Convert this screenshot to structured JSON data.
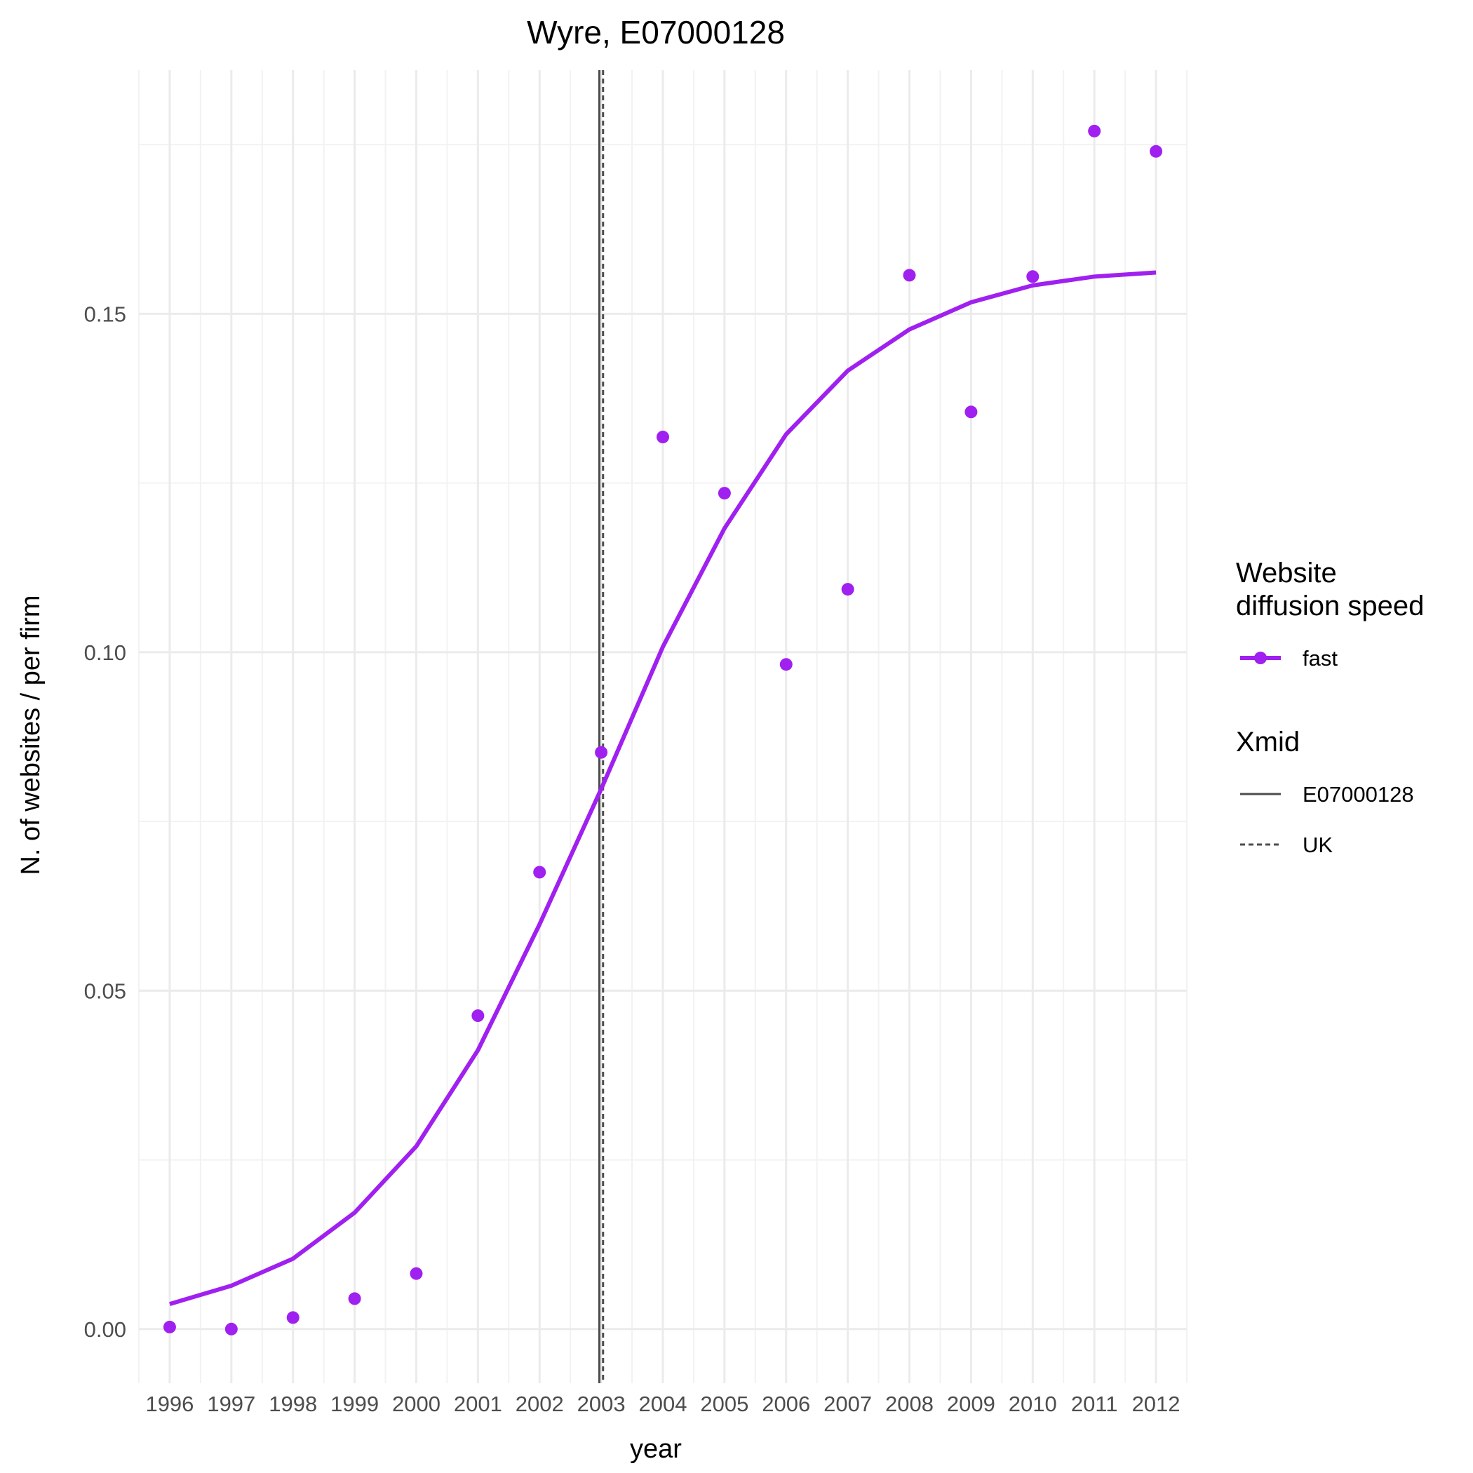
{
  "chart_data": {
    "type": "line",
    "title": "Wyre, E07000128",
    "xlabel": "year",
    "ylabel": "N. of websites / per firm",
    "x_ticks": [
      "1996",
      "1997",
      "1998",
      "1999",
      "2000",
      "2001",
      "2002",
      "2003",
      "2004",
      "2005",
      "2006",
      "2007",
      "2008",
      "2009",
      "2010",
      "2011",
      "2012"
    ],
    "y_ticks": [
      "0.00",
      "0.05",
      "0.10",
      "0.15"
    ],
    "xlim": [
      1995.5,
      2012.5
    ],
    "ylim": [
      -0.008,
      0.186
    ],
    "grid": true,
    "legend_placement": "right",
    "series": [
      {
        "name": "fast",
        "color": "#a020f0",
        "points": {
          "x": [
            1996,
            1997,
            1998,
            1999,
            2000,
            2001,
            2002,
            2003,
            2004,
            2005,
            2006,
            2007,
            2008,
            2009,
            2010,
            2011,
            2012
          ],
          "y": [
            0.0003,
            0.0,
            0.0017,
            0.0045,
            0.0082,
            0.0463,
            0.0675,
            0.0852,
            0.1318,
            0.1235,
            0.0982,
            0.1093,
            0.1557,
            0.1355,
            0.1555,
            0.177,
            0.174
          ]
        },
        "fit": {
          "x": [
            1996,
            1997,
            1998,
            1999,
            2000,
            2001,
            2002,
            2003,
            2004,
            2005,
            2006,
            2007,
            2008,
            2009,
            2010,
            2011,
            2012
          ],
          "y": [
            0.0037,
            0.0064,
            0.0104,
            0.0172,
            0.027,
            0.0412,
            0.0598,
            0.0798,
            0.1008,
            0.1183,
            0.1322,
            0.1416,
            0.1477,
            0.1517,
            0.1542,
            0.1555,
            0.1561
          ]
        }
      }
    ],
    "vlines": [
      {
        "name": "E07000128",
        "x": 2002.97,
        "linetype": "solid",
        "color": "#4d4d4d"
      },
      {
        "name": "UK",
        "x": 2003.03,
        "linetype": "dashed",
        "color": "#4d4d4d"
      }
    ],
    "legends": [
      {
        "title": [
          "Website",
          "diffusion speed"
        ],
        "entries": [
          {
            "label": "fast",
            "kind": "line-point",
            "color": "#a020f0"
          }
        ]
      },
      {
        "title": [
          "Xmid"
        ],
        "entries": [
          {
            "label": "E07000128",
            "kind": "line-solid",
            "color": "#4d4d4d"
          },
          {
            "label": "UK",
            "kind": "line-dashed",
            "color": "#4d4d4d"
          }
        ]
      }
    ]
  }
}
